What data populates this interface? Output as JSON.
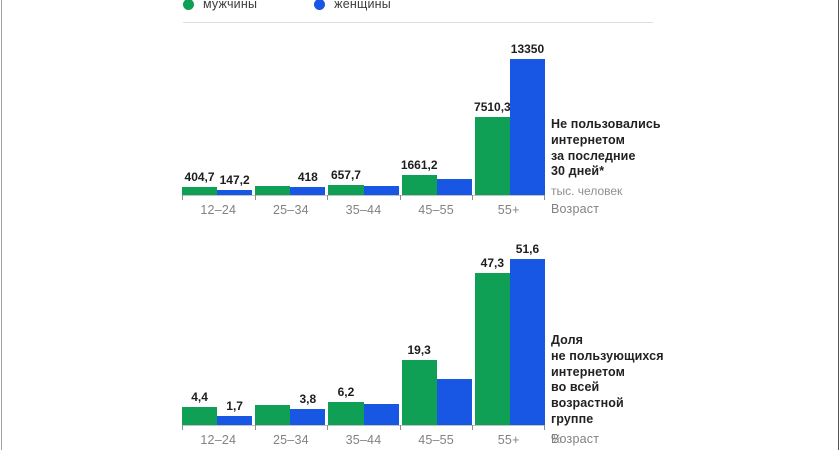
{
  "colors": {
    "men": "#0f9f55",
    "women": "#1856e4",
    "axis_line": "#c2c2c2",
    "tick": "#8f8f8f",
    "gray_text": "#828282",
    "dark_text": "#1d1d1d",
    "separator": "#dcdcdc"
  },
  "legend": {
    "items": [
      {
        "label": "мужчины",
        "color_key": "men"
      },
      {
        "label": "женщины",
        "color_key": "women"
      }
    ]
  },
  "chart_data": [
    {
      "type": "bar",
      "title": "Не пользовались интернетом за последние 30 дней*",
      "title_lines": [
        "Не пользовались",
        "интернетом",
        "за последние",
        "30 дней*"
      ],
      "unit": "тыс. человек",
      "xlabel": "Возраст",
      "categories": [
        "12–24",
        "25–34",
        "35–44",
        "45–55",
        "55+"
      ],
      "ymax": 13350,
      "legend_position": "top",
      "grid": false,
      "series": [
        {
          "name": "мужчины",
          "color_key": "men",
          "values": [
            404.7,
            560,
            657.7,
            1661.2,
            7510.3
          ],
          "labels": [
            "404,7",
            "",
            "657,7",
            "1661,2",
            "7510,3"
          ]
        },
        {
          "name": "женщины",
          "color_key": "women",
          "values": [
            147.2,
            418,
            530,
            1200,
            13350
          ],
          "labels": [
            "147,2",
            "418",
            "",
            "",
            "13350"
          ]
        }
      ]
    },
    {
      "type": "bar",
      "title": "Доля не пользующихся интернетом во всей возрастной группе",
      "title_lines": [
        "Доля",
        "не пользующихся",
        "интернетом",
        "во всей возрастной",
        "группе"
      ],
      "unit": "%",
      "xlabel": "Возраст",
      "categories": [
        "12–24",
        "25–34",
        "35–44",
        "45–55",
        "55+"
      ],
      "ymax": 51.6,
      "legend_position": "top",
      "grid": false,
      "series": [
        {
          "name": "мужчины",
          "color_key": "men",
          "values": [
            4.4,
            5.1,
            6.2,
            19.3,
            47.3
          ],
          "labels": [
            "4,4",
            "",
            "6,2",
            "19,3",
            "47,3"
          ]
        },
        {
          "name": "женщины",
          "color_key": "women",
          "values": [
            1.7,
            3.8,
            5.4,
            13.5,
            51.6
          ],
          "labels": [
            "1,7",
            "3,8",
            "",
            "",
            "51,6"
          ]
        }
      ]
    }
  ]
}
